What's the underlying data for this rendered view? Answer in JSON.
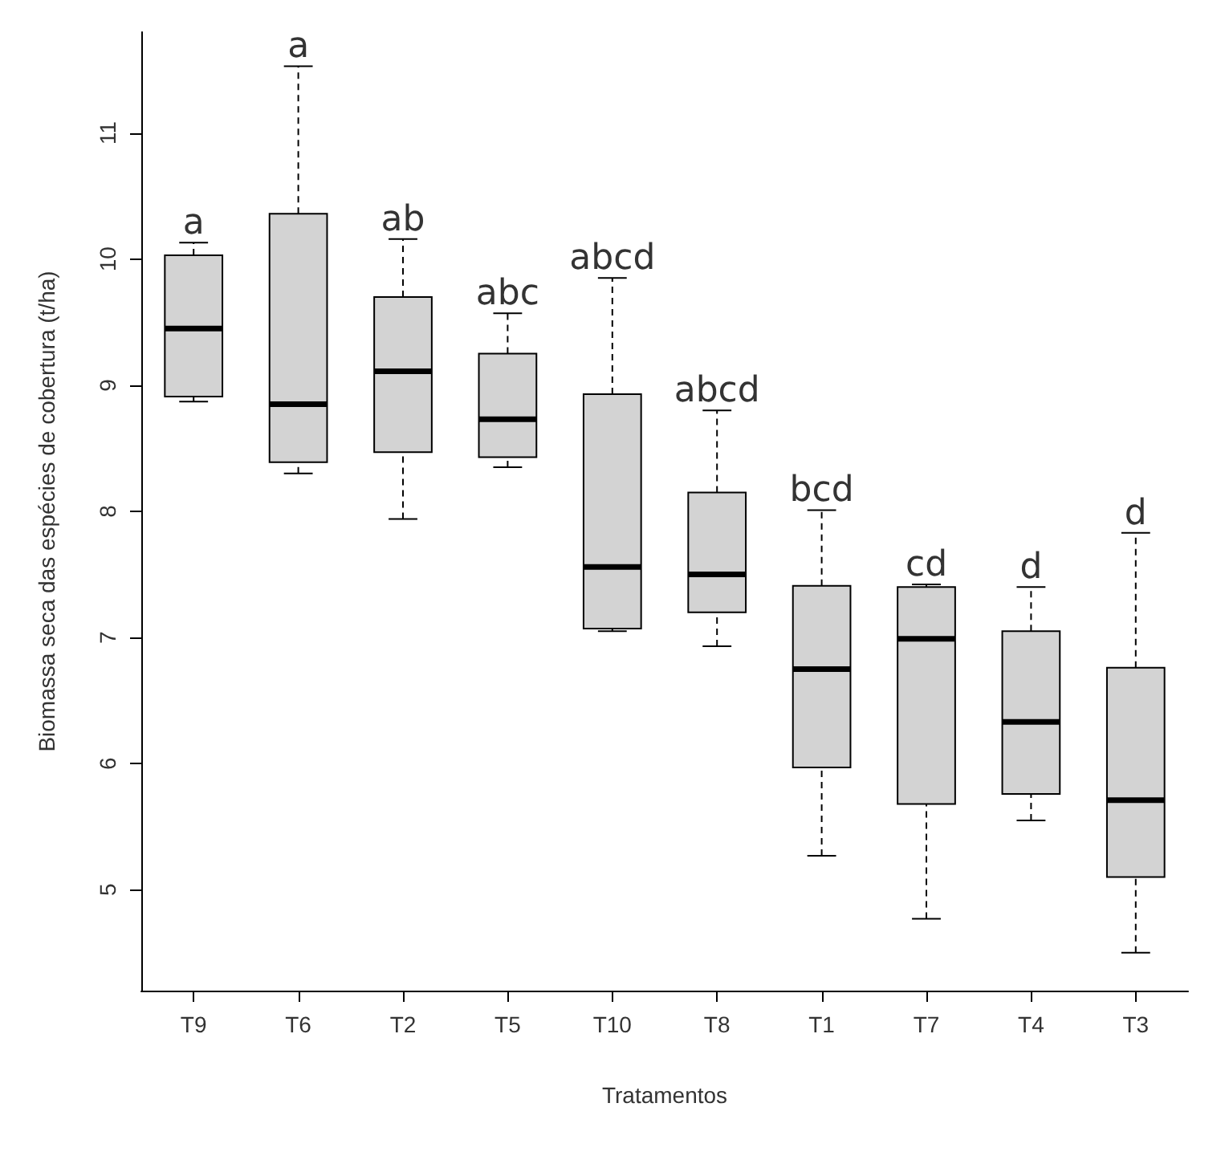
{
  "chart_data": {
    "type": "box",
    "xlabel": "Tratamentos",
    "ylabel": "Biomassa seca das espécies de cobertura (t/ha)",
    "categories": [
      "T9",
      "T6",
      "T2",
      "T5",
      "T10",
      "T8",
      "T1",
      "T7",
      "T4",
      "T3"
    ],
    "color": "#d3d3d3",
    "boxes": [
      {
        "low": 8.87,
        "q1": 8.91,
        "median": 9.45,
        "q3": 10.03,
        "high": 10.13
      },
      {
        "low": 8.3,
        "q1": 8.39,
        "median": 8.85,
        "q3": 10.36,
        "high": 11.53
      },
      {
        "low": 7.94,
        "q1": 8.47,
        "median": 9.11,
        "q3": 9.7,
        "high": 10.16
      },
      {
        "low": 8.35,
        "q1": 8.43,
        "median": 8.73,
        "q3": 9.25,
        "high": 9.57
      },
      {
        "low": 7.05,
        "q1": 7.07,
        "median": 7.56,
        "q3": 8.93,
        "high": 9.85
      },
      {
        "low": 6.93,
        "q1": 7.2,
        "median": 7.5,
        "q3": 8.15,
        "high": 8.8
      },
      {
        "low": 5.27,
        "q1": 5.97,
        "median": 6.75,
        "q3": 7.41,
        "high": 8.01
      },
      {
        "low": 4.77,
        "q1": 5.68,
        "median": 6.99,
        "q3": 7.4,
        "high": 7.42
      },
      {
        "low": 5.55,
        "q1": 5.76,
        "median": 6.33,
        "q3": 7.05,
        "high": 7.4
      },
      {
        "low": 4.5,
        "q1": 5.1,
        "median": 5.71,
        "q3": 6.76,
        "high": 7.83
      }
    ],
    "ylim": [
      4.2,
      11.8
    ],
    "yticks": [
      5,
      6,
      7,
      8,
      9,
      10,
      11
    ],
    "grid": false,
    "annotations": [
      {
        "text": "a",
        "x": "T9",
        "y": 10.13
      },
      {
        "text": "a",
        "x": "T6",
        "y": 11.53
      },
      {
        "text": "ab",
        "x": "T2",
        "y": 10.16
      },
      {
        "text": "abc",
        "x": "T5",
        "y": 9.57
      },
      {
        "text": "abcd",
        "x": "T10",
        "y": 9.85
      },
      {
        "text": "abcd",
        "x": "T8",
        "y": 8.8
      },
      {
        "text": "bcd",
        "x": "T1",
        "y": 8.01
      },
      {
        "text": "cd",
        "x": "T7",
        "y": 7.42
      },
      {
        "text": "d",
        "x": "T4",
        "y": 7.4
      },
      {
        "text": "d",
        "x": "T3",
        "y": 7.83
      }
    ]
  }
}
